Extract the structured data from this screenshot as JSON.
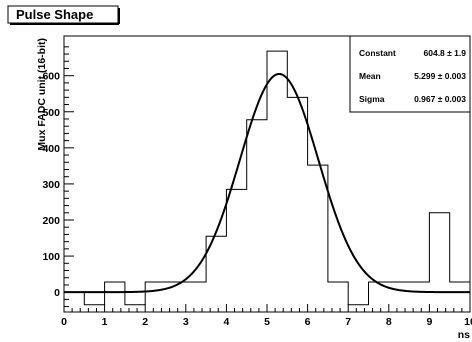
{
  "chart_data": {
    "type": "histogram",
    "title": "Pulse Shape",
    "xlabel": "ns",
    "ylabel": "Mux FADC unit (16-bit)",
    "xlim": [
      0,
      10
    ],
    "ylim": [
      -55,
      710
    ],
    "xticks": [
      "0",
      "1",
      "2",
      "3",
      "4",
      "5",
      "6",
      "7",
      "8",
      "9",
      "10"
    ],
    "yticks": [
      "0",
      "100",
      "200",
      "300",
      "400",
      "500",
      "600"
    ],
    "grid": false,
    "bin_width": 0.5,
    "bin_edges": [
      0,
      0.5,
      1,
      1.5,
      2,
      2.5,
      3,
      3.5,
      4,
      4.5,
      5,
      5.5,
      6,
      6.5,
      7,
      7.5,
      8,
      8.5,
      9,
      9.5,
      10
    ],
    "counts": [
      0,
      -35,
      28,
      -35,
      28,
      28,
      28,
      155,
      285,
      478,
      668,
      540,
      352,
      28,
      -35,
      28,
      28,
      28,
      220,
      28
    ],
    "fit": {
      "function": "gaussian",
      "constant": 604.8,
      "mean": 5.299,
      "sigma": 0.967
    },
    "stats_box": {
      "placement": "top-right",
      "rows": [
        {
          "name": "Constant",
          "value": "604.8 ± 1.9"
        },
        {
          "name": "Mean",
          "value": "5.299 ± 0.003"
        },
        {
          "name": "Sigma",
          "value": "0.967 ± 0.003"
        }
      ]
    }
  }
}
